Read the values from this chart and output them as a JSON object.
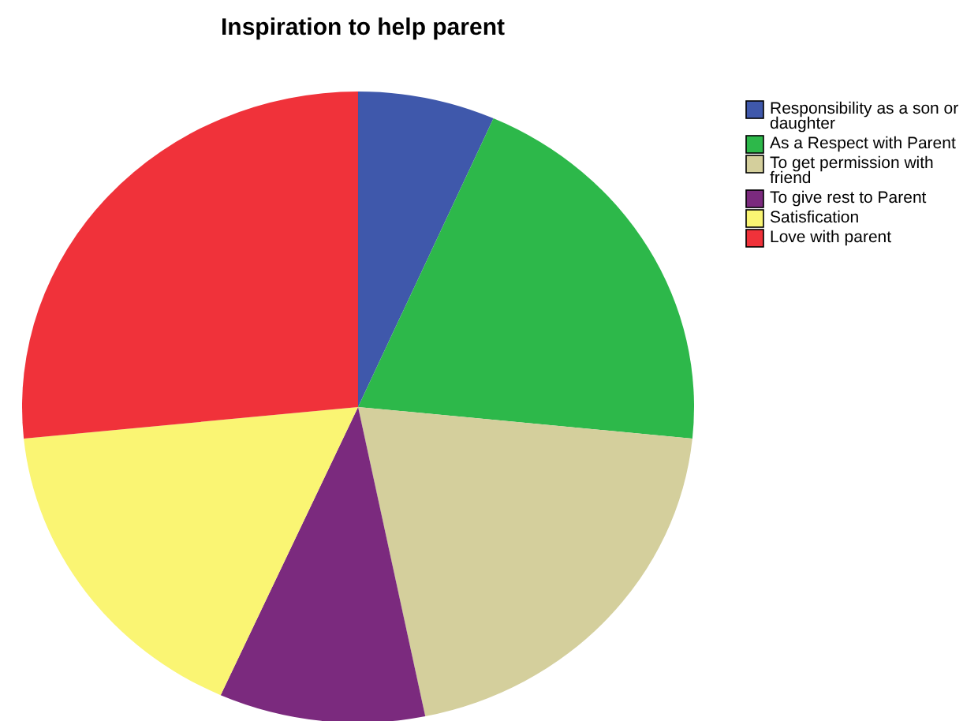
{
  "chart_data": {
    "type": "pie",
    "title": "Inspiration to help parent",
    "categories": [
      "Responsibility as a son or daughter",
      "As a Respect with Parent",
      "To get permission with friend",
      "To give rest to Parent",
      "Satisfication",
      "Love with parent"
    ],
    "values": [
      6.6,
      20,
      20.2,
      9.9,
      16.7,
      26.6
    ],
    "colors": [
      "#3f58ab",
      "#2db84a",
      "#d4cf9c",
      "#7b2a7e",
      "#faf573",
      "#f0323a"
    ],
    "legend": "top right"
  }
}
